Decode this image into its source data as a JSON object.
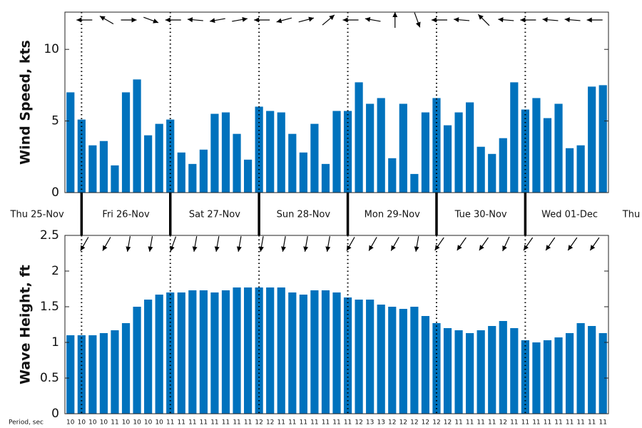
{
  "chart_data": [
    {
      "type": "bar",
      "ylabel": "Wind Speed, kts",
      "color": "#0072bd",
      "values": [
        7.0,
        5.1,
        3.3,
        3.6,
        1.9,
        7.0,
        7.9,
        4.0,
        4.8,
        5.1,
        2.8,
        2.0,
        3.0,
        5.5,
        5.6,
        4.1,
        2.3,
        6.0,
        5.7,
        5.6,
        4.1,
        2.8,
        4.8,
        2.0,
        5.7,
        5.7,
        7.7,
        6.2,
        6.6,
        2.4,
        6.2,
        1.3,
        5.6,
        6.6,
        4.7,
        5.6,
        6.3,
        3.2,
        2.7,
        3.8,
        7.7,
        5.8,
        6.6,
        5.2,
        6.2,
        3.1,
        3.3,
        7.4,
        7.5
      ],
      "direction": [
        180,
        150,
        0,
        -20,
        180,
        175,
        190,
        10,
        180,
        195,
        15,
        40,
        180,
        170,
        90,
        -70,
        180,
        175,
        135,
        175,
        180,
        175,
        175,
        180
      ],
      "ylim": [
        0,
        12.6
      ],
      "yticks": [
        0,
        5,
        10
      ]
    },
    {
      "type": "bar",
      "ylabel": "Wave Height, ft",
      "color": "#0072bd",
      "values": [
        1.1,
        1.1,
        1.1,
        1.13,
        1.17,
        1.27,
        1.5,
        1.6,
        1.67,
        1.7,
        1.7,
        1.73,
        1.73,
        1.7,
        1.73,
        1.77,
        1.77,
        1.77,
        1.77,
        1.77,
        1.7,
        1.67,
        1.73,
        1.73,
        1.7,
        1.63,
        1.6,
        1.6,
        1.53,
        1.5,
        1.47,
        1.5,
        1.37,
        1.27,
        1.2,
        1.17,
        1.13,
        1.17,
        1.23,
        1.3,
        1.2,
        1.03,
        1.0,
        1.03,
        1.07,
        1.13,
        1.27,
        1.23,
        1.13
      ],
      "direction": [
        -120,
        -120,
        -100,
        -100,
        -110,
        -100,
        -100,
        -100,
        -100,
        -100,
        -100,
        -100,
        -120,
        -120,
        -120,
        -100,
        -125,
        -125,
        -125,
        -115,
        -125,
        -125,
        -125,
        -125
      ],
      "period_label": "Period, sec",
      "period": [
        10,
        10,
        10,
        10,
        11,
        10,
        10,
        10,
        10,
        11,
        11,
        11,
        11,
        11,
        11,
        11,
        11,
        12,
        12,
        11,
        11,
        11,
        11,
        11,
        11,
        11,
        12,
        13,
        13,
        12,
        12,
        12,
        12,
        12,
        12,
        11,
        11,
        11,
        11,
        12,
        11,
        11,
        11,
        11,
        11,
        11,
        11,
        11,
        11
      ],
      "ylim": [
        0,
        2.5
      ],
      "yticks": [
        0,
        0.5,
        1,
        1.5,
        2,
        2.5
      ]
    }
  ],
  "day_labels": [
    "Thu 25-Nov",
    "Fri 26-Nov",
    "Sat 27-Nov",
    "Sun 28-Nov",
    "Mon 29-Nov",
    "Tue 30-Nov",
    "Wed 01-Dec",
    "Thu"
  ]
}
